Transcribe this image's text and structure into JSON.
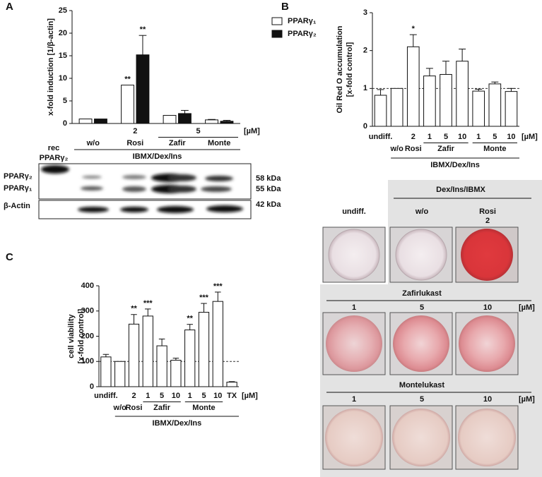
{
  "chart_data": [
    {
      "type": "bar",
      "panel": "A",
      "ylabel": [
        "x-fold induction [1/β-actin]"
      ],
      "categories": [
        null,
        "2",
        null,
        null
      ],
      "sublabels": [
        "w/o",
        "Rosi",
        "Zafir",
        "Monte"
      ],
      "groups": [
        {
          "label": "5",
          "row": 1,
          "from": 2,
          "to": 3
        }
      ],
      "unit": "[µM]",
      "footer": "IBMX/Dex/Ins",
      "series": [
        {
          "name": "PPARγ₁",
          "color": "#ffffff",
          "values": [
            1,
            8.5,
            1.8,
            0.8
          ],
          "errors": [
            0,
            0,
            0,
            0.1
          ],
          "annotations": [
            null,
            "**",
            null,
            null
          ]
        },
        {
          "name": "PPARγ₂",
          "color": "#111111",
          "values": [
            1,
            15.2,
            2.2,
            0.5
          ],
          "errors": [
            0,
            4.3,
            0.7,
            0.2
          ],
          "annotations": [
            null,
            "**",
            null,
            null
          ]
        }
      ],
      "ylim": [
        0,
        25
      ],
      "yticks": [
        0,
        5,
        10,
        15,
        20,
        25
      ],
      "legend": "upper right"
    },
    {
      "type": "bar",
      "panel": "B",
      "ylabel": [
        "Oil Red O accumulation",
        "[x-fold control]"
      ],
      "categories": [
        "undiff.",
        null,
        "2",
        "1",
        "5",
        "10",
        "1",
        "5",
        "10"
      ],
      "sublabels": [
        null,
        "w/o",
        "Rosi",
        null,
        null,
        null,
        null,
        null,
        null
      ],
      "groups": [
        {
          "label": "Zafir",
          "row": 2,
          "from": 3,
          "to": 5
        },
        {
          "label": "Monte",
          "row": 2,
          "from": 6,
          "to": 8
        }
      ],
      "unit": "[µM]",
      "footer": "IBMX/Dex/Ins",
      "series": [
        {
          "color": "#ffffff",
          "values": [
            0.82,
            1.0,
            2.1,
            1.33,
            1.37,
            1.72,
            0.93,
            1.12,
            0.92
          ],
          "errors": [
            0.15,
            0,
            0.32,
            0.2,
            0.35,
            0.32,
            0.05,
            0.05,
            0.08
          ],
          "annotations": [
            null,
            null,
            "*",
            null,
            null,
            null,
            null,
            null,
            null
          ]
        }
      ],
      "ylim": [
        0,
        3
      ],
      "yticks": [
        0,
        1,
        2,
        3
      ],
      "reference_line": 1
    },
    {
      "type": "bar",
      "panel": "C",
      "ylabel": [
        "cell viability",
        "[x-fold control]"
      ],
      "categories": [
        "undiff.",
        null,
        "2",
        "1",
        "5",
        "10",
        "1",
        "5",
        "10",
        "TX"
      ],
      "sublabels": [
        null,
        "w/o",
        "Rosi",
        null,
        null,
        null,
        null,
        null,
        null,
        null
      ],
      "groups": [
        {
          "label": "Zafir",
          "row": 2,
          "from": 3,
          "to": 5
        },
        {
          "label": "Monte",
          "row": 2,
          "from": 6,
          "to": 8
        }
      ],
      "unit": "[µM]",
      "footer": "IBMX/Dex/Ins",
      "series": [
        {
          "color": "#ffffff",
          "values": [
            118,
            100,
            248,
            280,
            162,
            105,
            225,
            295,
            338,
            18
          ],
          "errors": [
            10,
            0,
            38,
            28,
            27,
            8,
            22,
            35,
            37,
            2
          ],
          "annotations": [
            null,
            null,
            "**",
            "***",
            null,
            null,
            "**",
            "***",
            "***",
            null
          ]
        }
      ],
      "ylim": [
        0,
        400
      ],
      "yticks": [
        0,
        100,
        200,
        300,
        400
      ],
      "reference_line": 100
    }
  ],
  "blot": {
    "rec_label": [
      "rec",
      "PPARγ₂"
    ],
    "bands": [
      "PPARγ₂",
      "PPARγ₁"
    ],
    "sizes": [
      "58 kDa",
      "55 kDa"
    ],
    "loading": "β-Actin",
    "loading_size": "42 kDa"
  },
  "photos": {
    "header": "Dex/Ins/IBMX",
    "top_columns": [
      "undiff.",
      "w/o",
      "Rosi"
    ],
    "rosi_dose": "2",
    "zafir": {
      "title": "Zafirlukast",
      "doses": [
        "1",
        "5",
        "10"
      ],
      "unit": "[µM]"
    },
    "monte": {
      "title": "Montelukast",
      "doses": [
        "1",
        "5",
        "10"
      ],
      "unit": "[µM]"
    }
  }
}
